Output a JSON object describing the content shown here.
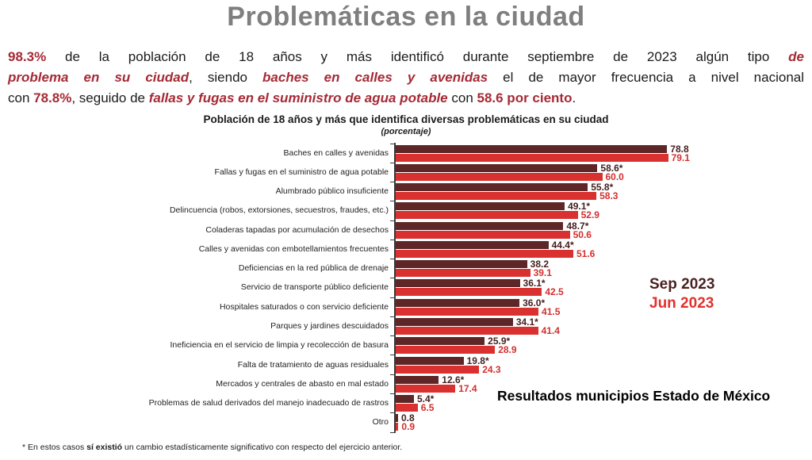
{
  "slide": {
    "title": "Problemáticas en la ciudad",
    "intro_lines": [
      {
        "align": "justify",
        "segments": [
          {
            "text": "98.3%",
            "style": "red"
          },
          {
            "text": " de la población de 18 años y más identificó durante septiembre de 2023 algún tipo ",
            "style": "plain"
          },
          {
            "text": "de",
            "style": "red-italic"
          }
        ]
      },
      {
        "align": "justify",
        "segments": [
          {
            "text": "problema en su ciudad",
            "style": "red-italic"
          },
          {
            "text": ", siendo ",
            "style": "plain"
          },
          {
            "text": "baches en calles y avenidas",
            "style": "red-italic"
          },
          {
            "text": " el de mayor frecuencia a nivel nacional",
            "style": "plain"
          }
        ]
      },
      {
        "align": "left",
        "segments": [
          {
            "text": "con ",
            "style": "plain"
          },
          {
            "text": "78.8%",
            "style": "red"
          },
          {
            "text": ", seguido de ",
            "style": "plain"
          },
          {
            "text": "fallas y fugas en el suministro de agua potable",
            "style": "red-italic"
          },
          {
            "text": " con ",
            "style": "plain"
          },
          {
            "text": "58.6 por ciento",
            "style": "red"
          },
          {
            "text": ".",
            "style": "plain"
          }
        ]
      }
    ],
    "annotation": "Resultados municipios Estado de México",
    "footnote_segments": [
      {
        "text": "* En estos casos ",
        "style": "plain"
      },
      {
        "text": "sí existió",
        "style": "bold"
      },
      {
        "text": " un cambio estadísticamente significativo con respecto del ejercicio anterior.",
        "style": "plain"
      }
    ]
  },
  "chart_data": {
    "type": "bar",
    "orientation": "horizontal",
    "title": "Población de 18 años y más que identifica diversas problemáticas en su ciudad",
    "subtitle": "(porcentaje)",
    "xlabel": "",
    "ylabel": "",
    "xlim": [
      0,
      85
    ],
    "grid": false,
    "legend_position": "right",
    "categories": [
      "Baches en calles y avenidas",
      "Fallas y fugas en el suministro de agua potable",
      "Alumbrado público insuficiente",
      "Delincuencia (robos, extorsiones, secuestros, fraudes, etc.)",
      "Coladeras tapadas por acumulación de desechos",
      "Calles y avenidas con embotellamientos frecuentes",
      "Deficiencias en la red pública de drenaje",
      "Servicio de transporte público deficiente",
      "Hospitales saturados o con servicio deficiente",
      "Parques y jardines descuidados",
      "Ineficiencia en el servicio de limpia y recolección de basura",
      "Falta de tratamiento de aguas residuales",
      "Mercados y centrales de abasto en mal estado",
      "Problemas de salud derivados del manejo inadecuado de rastros",
      "Otro"
    ],
    "series": [
      {
        "name": "Sep 2023",
        "color": "#5e2626",
        "label_color": "#452020",
        "legend_color": "#4a2120",
        "values": [
          78.8,
          58.6,
          55.8,
          49.1,
          48.7,
          44.4,
          38.2,
          36.1,
          36.0,
          34.1,
          25.9,
          19.8,
          12.6,
          5.4,
          0.8
        ],
        "labels": [
          "78.8",
          "58.6*",
          "55.8*",
          "49.1*",
          "48.7*",
          "44.4*",
          "38.2",
          "36.1*",
          "36.0*",
          "34.1*",
          "25.9*",
          "19.8*",
          "12.6*",
          "5.4*",
          "0.8"
        ]
      },
      {
        "name": "Jun 2023",
        "color": "#d93030",
        "label_color": "#d22f2e",
        "legend_color": "#e2312d",
        "values": [
          79.1,
          60.0,
          58.3,
          52.9,
          50.6,
          51.6,
          39.1,
          42.5,
          41.5,
          41.4,
          28.9,
          24.3,
          17.4,
          6.5,
          0.9
        ],
        "labels": [
          "79.1",
          "60.0",
          "58.3",
          "52.9",
          "50.6",
          "51.6",
          "39.1",
          "42.5",
          "41.5",
          "41.4",
          "28.9",
          "24.3",
          "17.4",
          "6.5",
          "0.9"
        ]
      }
    ]
  },
  "theme": {
    "title_color": "#7f7f7f",
    "red_text_color": "#a52a35",
    "body_text_color": "#1b1b1b",
    "axis_color": "#3a3a3a",
    "background": "#ffffff"
  }
}
